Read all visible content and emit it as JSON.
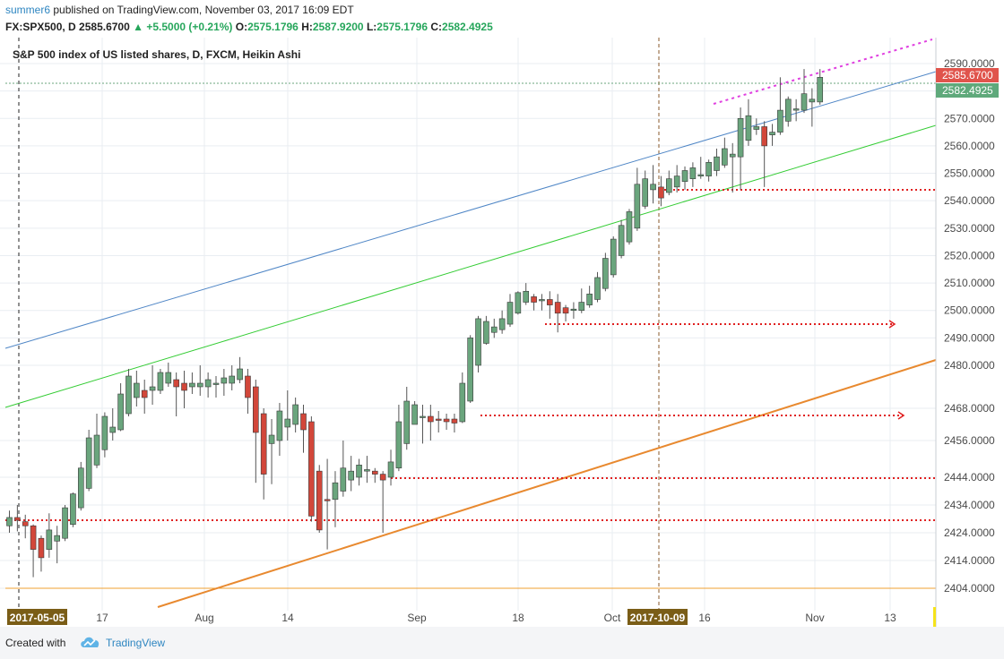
{
  "header": {
    "author": "summer6",
    "published": "published on TradingView.com, November 03, 2017 16:09 EDT",
    "symbol": "FX:SPX500, D",
    "last": "2585.6700",
    "change": "+5.5000 (+0.21%)",
    "o_label": "O:",
    "o": "2575.1796",
    "h_label": "H:",
    "h": "2587.9200",
    "l_label": "L:",
    "l": "2575.1796",
    "c_label": "C:",
    "c": "2582.4925"
  },
  "footer": {
    "created_with": "Created with",
    "brand": "TradingView"
  },
  "colors": {
    "up": "#6aa57d",
    "down": "#d2473a",
    "grid": "#e9edf2",
    "axis_text": "#4a4a4a",
    "price_badge_red": "#e0544c",
    "price_badge_green": "#5fa97b"
  },
  "chart_data": {
    "type": "candlestick",
    "title": "S&P 500 index of US listed shares, D, FXCM, Heikin Ashi",
    "y_ticks": [
      "2590.0000",
      "2580.0000",
      "2570.0000",
      "2560.0000",
      "2550.0000",
      "2540.0000",
      "2530.0000",
      "2520.0000",
      "2510.0000",
      "2500.0000",
      "2490.0000",
      "2480.0000",
      "2468.0000",
      "2456.0000",
      "2444.0000",
      "2434.0000",
      "2424.0000",
      "2414.0000",
      "2404.0000"
    ],
    "x_ticks": [
      "17",
      "Aug",
      "14",
      "Sep",
      "18",
      "Oct",
      "16",
      "Nov",
      "13"
    ],
    "x_highlights": [
      "2017-05-05",
      "2017-10-09"
    ],
    "price_labels": {
      "last_close": "2585.6700",
      "ha_close": "2582.4925"
    },
    "ylim": [
      2402,
      2596
    ],
    "candles": [
      [
        2426.5,
        2429.5,
        2432.0,
        2424.0
      ],
      [
        2429.5,
        2428.5,
        2434.0,
        2424.5
      ],
      [
        2428.0,
        2426.5,
        2430.5,
        2422.0
      ],
      [
        2426.5,
        2418.0,
        2427.0,
        2408.0
      ],
      [
        2422.0,
        2415.0,
        2423.0,
        2410.0
      ],
      [
        2418.0,
        2425.0,
        2431.0,
        2415.0
      ],
      [
        2421.0,
        2423.0,
        2426.5,
        2413.0
      ],
      [
        2422.0,
        2433.0,
        2434.0,
        2421.0
      ],
      [
        2427.0,
        2438.0,
        2438.5,
        2426.0
      ],
      [
        2433.0,
        2447.0,
        2449.0,
        2432.0
      ],
      [
        2440.0,
        2457.0,
        2460.0,
        2439.0
      ],
      [
        2448.0,
        2458.0,
        2466.0,
        2447.0
      ],
      [
        2453.0,
        2465.0,
        2466.5,
        2450.5
      ],
      [
        2459.0,
        2461.0,
        2468.0,
        2456.0
      ],
      [
        2460.0,
        2472.0,
        2475.0,
        2459.5
      ],
      [
        2466.0,
        2477.0,
        2479.0,
        2465.0
      ],
      [
        2471.0,
        2475.0,
        2478.5,
        2468.5
      ],
      [
        2473.0,
        2471.0,
        2476.0,
        2466.0
      ],
      [
        2473.0,
        2474.0,
        2480.0,
        2469.0
      ],
      [
        2473.0,
        2478.0,
        2479.0,
        2472.0
      ],
      [
        2475.0,
        2478.0,
        2481.0,
        2474.0
      ],
      [
        2476.0,
        2474.0,
        2478.0,
        2465.0
      ],
      [
        2475.0,
        2473.0,
        2478.5,
        2468.0
      ],
      [
        2474.0,
        2475.0,
        2478.0,
        2472.0
      ],
      [
        2474.0,
        2475.0,
        2480.0,
        2471.5
      ],
      [
        2474.0,
        2476.0,
        2478.0,
        2471.0
      ],
      [
        2475.0,
        2475.0,
        2477.0,
        2471.0
      ],
      [
        2475.0,
        2476.5,
        2479.0,
        2471.5
      ],
      [
        2475.0,
        2477.0,
        2480.0,
        2473.0
      ],
      [
        2476.0,
        2479.0,
        2483.0,
        2475.0
      ],
      [
        2477.0,
        2471.0,
        2479.0,
        2466.0
      ],
      [
        2474.0,
        2459.0,
        2476.0,
        2442.0
      ],
      [
        2466.0,
        2445.0,
        2468.0,
        2436.0
      ],
      [
        2455.0,
        2458.0,
        2464.0,
        2441.5
      ],
      [
        2456.0,
        2467.0,
        2469.5,
        2451.0
      ],
      [
        2461.0,
        2464.0,
        2473.0,
        2456.0
      ],
      [
        2462.0,
        2469.0,
        2471.0,
        2459.0
      ],
      [
        2466.0,
        2460.0,
        2469.0,
        2452.0
      ],
      [
        2463.0,
        2430.0,
        2465.0,
        2428.0
      ],
      [
        2446.0,
        2425.0,
        2448.0,
        2424.0
      ],
      [
        2436.0,
        2435.5,
        2450.0,
        2418.0
      ],
      [
        2436.0,
        2442.0,
        2446.0,
        2426.0
      ],
      [
        2439.0,
        2447.0,
        2456.0,
        2437.0
      ],
      [
        2443.0,
        2446.0,
        2451.0,
        2439.0
      ],
      [
        2444.0,
        2448.0,
        2450.0,
        2441.0
      ],
      [
        2446.0,
        2446.5,
        2451.0,
        2442.0
      ],
      [
        2446.0,
        2445.0,
        2447.0,
        2442.0
      ],
      [
        2445.0,
        2443.0,
        2446.0,
        2424.0
      ],
      [
        2444.0,
        2449.0,
        2453.0,
        2441.0
      ],
      [
        2447.0,
        2463.0,
        2469.0,
        2446.0
      ],
      [
        2455.0,
        2470.0,
        2474.0,
        2453.0
      ],
      [
        2462.0,
        2469.0,
        2470.0,
        2462.0
      ],
      [
        2465.0,
        2465.0,
        2469.0,
        2455.0
      ],
      [
        2465.0,
        2463.0,
        2469.0,
        2456.0
      ],
      [
        2464.0,
        2463.5,
        2467.0,
        2459.0
      ],
      [
        2464.0,
        2463.0,
        2466.0,
        2460.0
      ],
      [
        2464.0,
        2462.5,
        2466.0,
        2459.0
      ],
      [
        2463.0,
        2475.0,
        2478.0,
        2462.5
      ],
      [
        2470.0,
        2490.0,
        2491.0,
        2469.5
      ],
      [
        2480.0,
        2497.0,
        2498.0,
        2478.0
      ],
      [
        2488.0,
        2496.0,
        2498.0,
        2487.5
      ],
      [
        2492.0,
        2494.0,
        2497.0,
        2490.0
      ],
      [
        2493.0,
        2497.0,
        2500.0,
        2491.5
      ],
      [
        2495.0,
        2503.0,
        2506.0,
        2494.0
      ],
      [
        2499.0,
        2506.5,
        2507.0,
        2498.5
      ],
      [
        2503.0,
        2507.0,
        2510.0,
        2502.0
      ],
      [
        2505.0,
        2503.0,
        2506.0,
        2500.0
      ],
      [
        2504.0,
        2504.0,
        2506.0,
        2500.0
      ],
      [
        2504.0,
        2502.0,
        2507.0,
        2497.0
      ],
      [
        2503.0,
        2499.0,
        2506.0,
        2492.0
      ],
      [
        2501.0,
        2499.0,
        2502.0,
        2496.0
      ],
      [
        2500.0,
        2500.5,
        2503.0,
        2497.0
      ],
      [
        2500.0,
        2503.0,
        2508.0,
        2499.0
      ],
      [
        2502.0,
        2506.0,
        2509.0,
        2501.0
      ],
      [
        2504.0,
        2512.0,
        2514.0,
        2503.0
      ],
      [
        2508.0,
        2519.0,
        2521.0,
        2507.0
      ],
      [
        2513.0,
        2526.0,
        2527.0,
        2512.0
      ],
      [
        2520.0,
        2531.0,
        2533.0,
        2519.0
      ],
      [
        2525.0,
        2536.0,
        2537.0,
        2524.0
      ],
      [
        2530.0,
        2546.0,
        2552.0,
        2529.0
      ],
      [
        2538.0,
        2548.0,
        2551.0,
        2537.0
      ],
      [
        2544.0,
        2546.0,
        2553.0,
        2539.0
      ],
      [
        2545.0,
        2541.0,
        2549.0,
        2538.0
      ],
      [
        2543.0,
        2548.0,
        2551.0,
        2542.0
      ],
      [
        2545.0,
        2549.0,
        2553.0,
        2543.0
      ],
      [
        2547.0,
        2551.0,
        2552.5,
        2544.0
      ],
      [
        2548.0,
        2552.0,
        2554.0,
        2545.0
      ],
      [
        2549.0,
        2549.5,
        2556.0,
        2548.0
      ],
      [
        2549.0,
        2554.0,
        2555.0,
        2547.0
      ],
      [
        2551.0,
        2556.0,
        2559.0,
        2549.0
      ],
      [
        2553.0,
        2559.0,
        2563.0,
        2552.0
      ],
      [
        2556.0,
        2557.0,
        2561.0,
        2543.0
      ],
      [
        2556.0,
        2570.0,
        2574.0,
        2544.0
      ],
      [
        2562.0,
        2571.0,
        2577.0,
        2560.0
      ],
      [
        2566.0,
        2567.0,
        2570.0,
        2564.0
      ],
      [
        2567.0,
        2560.0,
        2569.0,
        2545.0
      ],
      [
        2564.0,
        2565.0,
        2568.0,
        2560.0
      ],
      [
        2565.0,
        2573.0,
        2585.0,
        2564.0
      ],
      [
        2569.0,
        2577.0,
        2578.0,
        2567.0
      ],
      [
        2573.0,
        2573.5,
        2577.0,
        2569.0
      ],
      [
        2573.0,
        2579.0,
        2588.0,
        2572.0
      ],
      [
        2576.0,
        2577.0,
        2581.0,
        2567.0
      ],
      [
        2576.0,
        2585.0,
        2588.0,
        2575.0
      ]
    ]
  }
}
